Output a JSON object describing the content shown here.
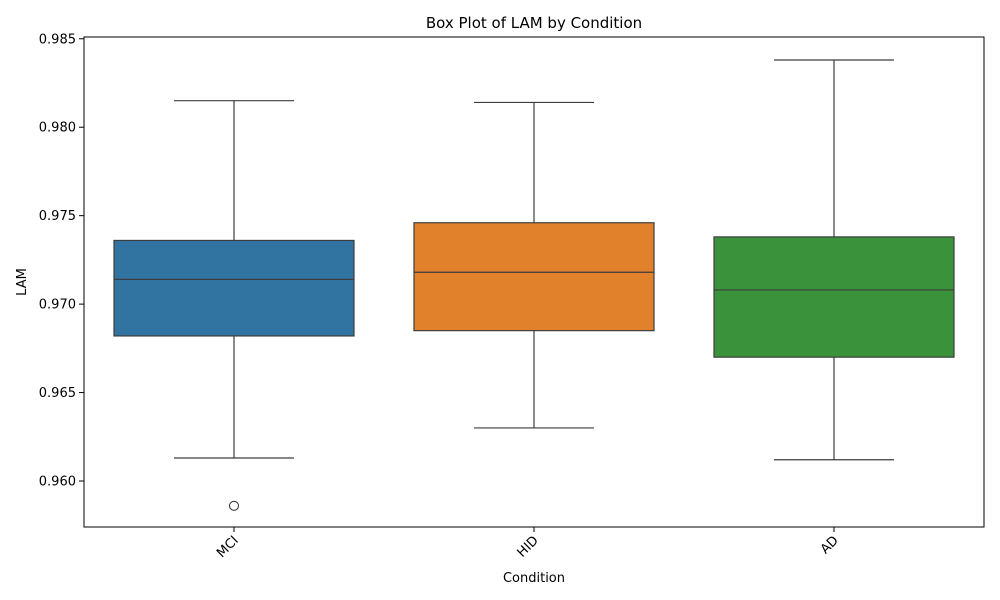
{
  "chart_data": {
    "type": "box",
    "title": "Box Plot of LAM by Condition",
    "xlabel": "Condition",
    "ylabel": "LAM",
    "ylim": [
      0.9574,
      0.9851
    ],
    "yticks": [
      0.96,
      0.965,
      0.97,
      0.975,
      0.98,
      0.985
    ],
    "ytick_labels": [
      "0.960",
      "0.965",
      "0.970",
      "0.975",
      "0.980",
      "0.985"
    ],
    "grid": false,
    "legend": "none",
    "categories": [
      "MCI",
      "HID",
      "AD"
    ],
    "series": [
      {
        "category": "MCI",
        "color": "#3274a1",
        "whisker_low": 0.9613,
        "q1": 0.9682,
        "median": 0.9714,
        "q3": 0.9736,
        "whisker_high": 0.9815,
        "outliers": [
          0.9586
        ]
      },
      {
        "category": "HID",
        "color": "#e1812c",
        "whisker_low": 0.963,
        "q1": 0.9685,
        "median": 0.9718,
        "q3": 0.9746,
        "whisker_high": 0.9814,
        "outliers": []
      },
      {
        "category": "AD",
        "color": "#3a923a",
        "whisker_low": 0.9612,
        "q1": 0.967,
        "median": 0.9708,
        "q3": 0.9738,
        "whisker_high": 0.9838,
        "outliers": []
      }
    ]
  }
}
